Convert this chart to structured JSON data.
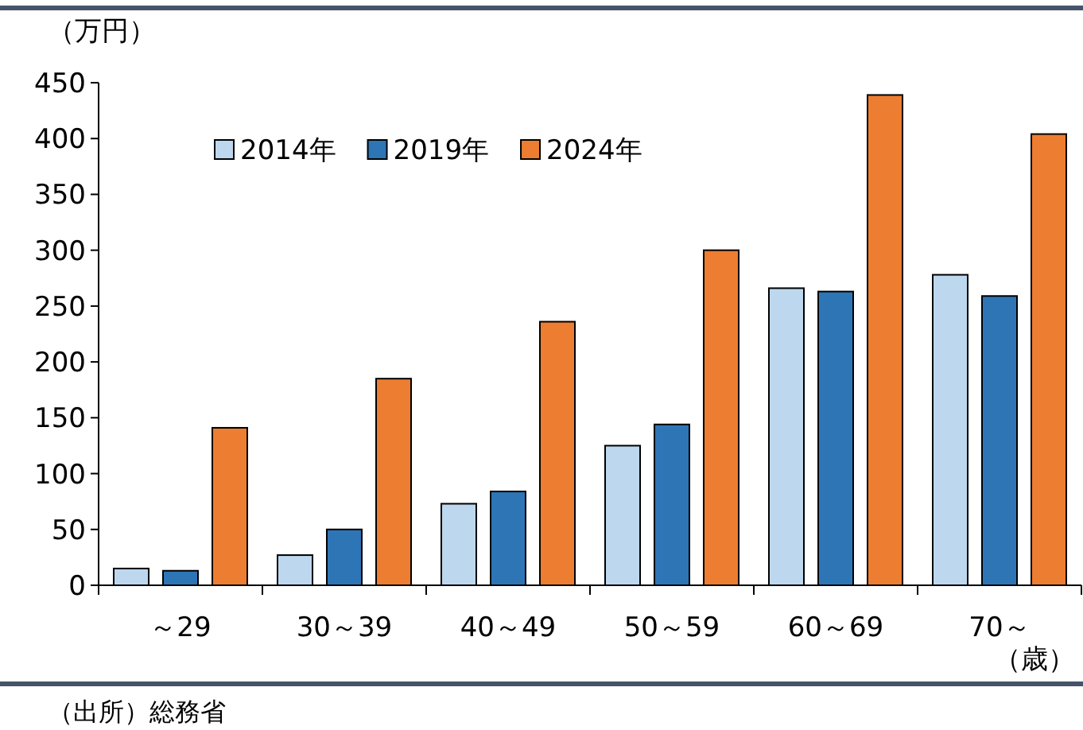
{
  "chart_data": {
    "type": "bar",
    "ylabel": "（万円）",
    "xlabel": "（歳）",
    "annotations": [
      "（出所）総務省"
    ],
    "categories": [
      "～29",
      "30～39",
      "40～49",
      "50～59",
      "60～69",
      "70～"
    ],
    "series": [
      {
        "name": "2014年",
        "color": "#bdd7ee",
        "values": [
          15,
          27,
          73,
          125,
          266,
          278
        ]
      },
      {
        "name": "2019年",
        "color": "#2e75b6",
        "values": [
          13,
          50,
          84,
          144,
          263,
          259
        ]
      },
      {
        "name": "2024年",
        "color": "#ed7d31",
        "values": [
          141,
          185,
          236,
          300,
          439,
          404
        ]
      }
    ],
    "ylim": [
      0,
      450
    ],
    "yticks": [
      0,
      50,
      100,
      150,
      200,
      250,
      300,
      350,
      400,
      450
    ],
    "grid": false,
    "legend": "top left"
  }
}
